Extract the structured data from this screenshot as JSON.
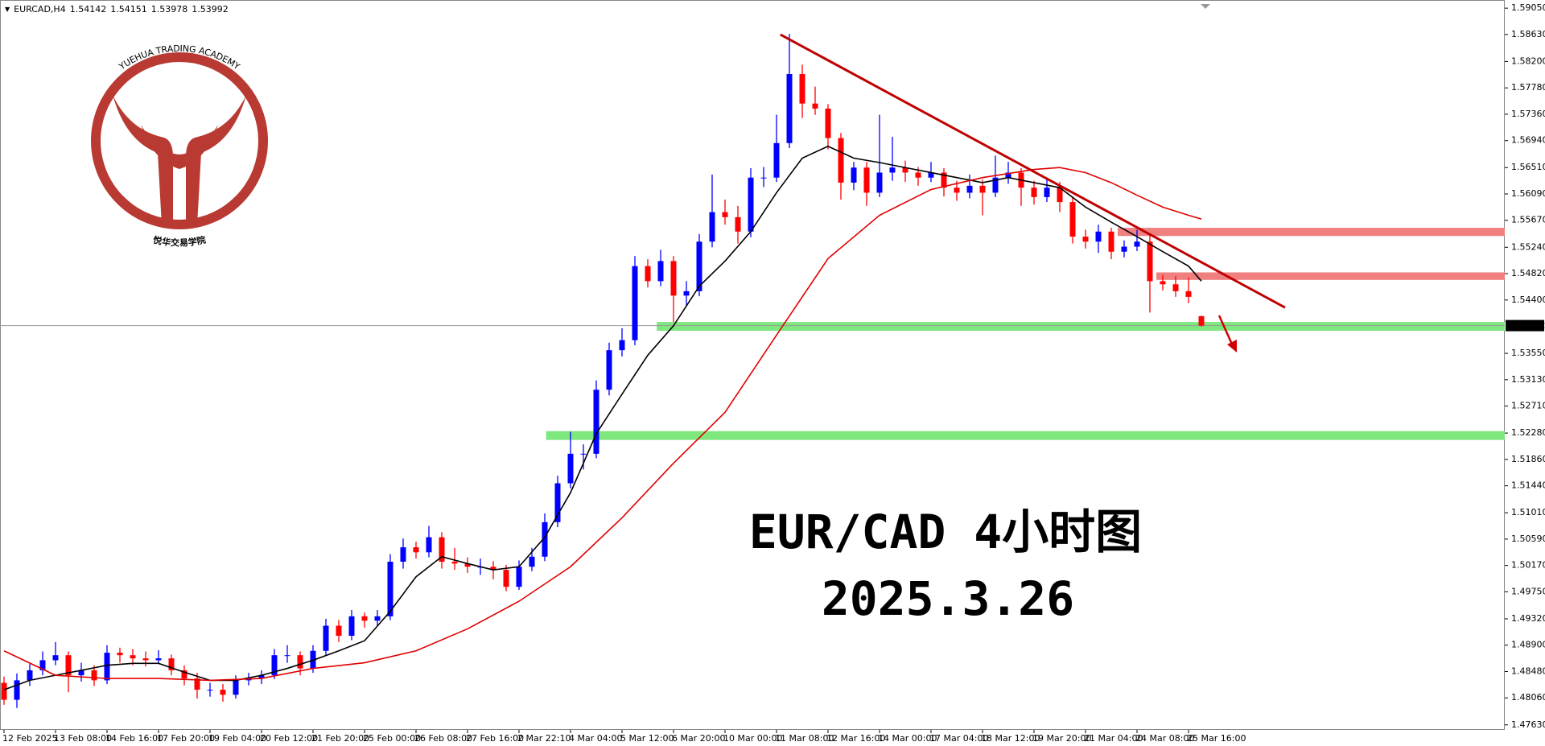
{
  "header": {
    "symbol": "EURCAD,H4",
    "quote": [
      1.54142,
      1.54151,
      1.53978,
      1.53992
    ]
  },
  "logo": {
    "arc_text": "YUEHUA TRADING ACADEMY",
    "cn_text": "悦华交易学院"
  },
  "chart_data": {
    "type": "candlestick",
    "up_color": "#0000ff",
    "down_color": "#ff0000",
    "categories": [
      "12 Feb 2025",
      null,
      null,
      null,
      "13 Feb 08:00",
      null,
      null,
      null,
      "14 Feb 16:00",
      null,
      null,
      null,
      "17 Feb 20:00",
      null,
      null,
      null,
      "19 Feb 04:00",
      null,
      null,
      null,
      "20 Feb 12:00",
      null,
      null,
      null,
      "21 Feb 20:00",
      null,
      null,
      null,
      "25 Feb 00:00",
      null,
      null,
      null,
      "26 Feb 08:00",
      null,
      null,
      null,
      "27 Feb 16:00",
      null,
      null,
      null,
      "2 Mar 22:10",
      null,
      null,
      null,
      "4 Mar 04:00",
      null,
      null,
      null,
      "5 Mar 12:00",
      null,
      null,
      null,
      "6 Mar 20:00",
      null,
      null,
      null,
      "10 Mar 00:00",
      null,
      null,
      null,
      "11 Mar 08:00",
      null,
      null,
      null,
      "12 Mar 16:00",
      null,
      null,
      null,
      "14 Mar 00:00",
      null,
      null,
      null,
      "17 Mar 04:00",
      null,
      null,
      null,
      "18 Mar 12:00",
      null,
      null,
      null,
      "19 Mar 20:00",
      null,
      null,
      null,
      "21 Mar 04:00",
      null,
      null,
      null,
      "24 Mar 08:00",
      null,
      null,
      null,
      "25 Mar 16:00",
      null
    ],
    "ohlc": [
      [
        1.483,
        1.484,
        1.4795,
        1.4803
      ],
      [
        1.4803,
        1.4845,
        1.479,
        1.4834
      ],
      [
        1.4834,
        1.486,
        1.4825,
        1.485
      ],
      [
        1.485,
        1.488,
        1.4842,
        1.4866
      ],
      [
        1.4866,
        1.4895,
        1.4858,
        1.4874
      ],
      [
        1.4874,
        1.488,
        1.4815,
        1.4842
      ],
      [
        1.4842,
        1.4862,
        1.4832,
        1.485
      ],
      [
        1.485,
        1.4858,
        1.4825,
        1.4834
      ],
      [
        1.4834,
        1.489,
        1.4828,
        1.4878
      ],
      [
        1.4878,
        1.4886,
        1.4862,
        1.4874
      ],
      [
        1.4874,
        1.4884,
        1.4858,
        1.4869
      ],
      [
        1.4869,
        1.488,
        1.4856,
        1.4866
      ],
      [
        1.4866,
        1.4882,
        1.486,
        1.4869
      ],
      [
        1.4869,
        1.4875,
        1.4842,
        1.485
      ],
      [
        1.485,
        1.4858,
        1.4826,
        1.4837
      ],
      [
        1.4837,
        1.4846,
        1.4805,
        1.4819
      ],
      [
        1.4819,
        1.483,
        1.4808,
        1.4819
      ],
      [
        1.4819,
        1.4828,
        1.48,
        1.4811
      ],
      [
        1.4811,
        1.4842,
        1.4805,
        1.4834
      ],
      [
        1.4834,
        1.4846,
        1.4826,
        1.4837
      ],
      [
        1.4837,
        1.485,
        1.4828,
        1.4842
      ],
      [
        1.4842,
        1.4884,
        1.4836,
        1.4874
      ],
      [
        1.4874,
        1.489,
        1.4862,
        1.4874
      ],
      [
        1.4874,
        1.488,
        1.4842,
        1.4853
      ],
      [
        1.4853,
        1.489,
        1.4846,
        1.4881
      ],
      [
        1.4881,
        1.4932,
        1.4874,
        1.4921
      ],
      [
        1.4921,
        1.493,
        1.4895,
        1.4905
      ],
      [
        1.4905,
        1.4946,
        1.4898,
        1.4936
      ],
      [
        1.4936,
        1.4942,
        1.4918,
        1.4929
      ],
      [
        1.4929,
        1.4946,
        1.492,
        1.4936
      ],
      [
        1.4936,
        1.5035,
        1.493,
        1.5023
      ],
      [
        1.5023,
        1.506,
        1.5012,
        1.5046
      ],
      [
        1.5046,
        1.5055,
        1.5028,
        1.5038
      ],
      [
        1.5038,
        1.508,
        1.503,
        1.5062
      ],
      [
        1.5062,
        1.507,
        1.5012,
        1.5023
      ],
      [
        1.5023,
        1.5045,
        1.501,
        1.502
      ],
      [
        1.502,
        1.503,
        1.5005,
        1.5015
      ],
      [
        1.5015,
        1.5028,
        1.5002,
        1.5015
      ],
      [
        1.5015,
        1.5024,
        1.4995,
        1.501
      ],
      [
        1.501,
        1.5018,
        1.4976,
        1.4983
      ],
      [
        1.4983,
        1.5025,
        1.4978,
        1.5015
      ],
      [
        1.5015,
        1.5045,
        1.5008,
        1.5031
      ],
      [
        1.5031,
        1.51,
        1.5024,
        1.5086
      ],
      [
        1.5086,
        1.516,
        1.5078,
        1.5148
      ],
      [
        1.5148,
        1.523,
        1.514,
        1.5195
      ],
      [
        1.5195,
        1.521,
        1.517,
        1.5195
      ],
      [
        1.5195,
        1.5312,
        1.5188,
        1.5297
      ],
      [
        1.5297,
        1.5372,
        1.5288,
        1.536
      ],
      [
        1.536,
        1.5395,
        1.535,
        1.5376
      ],
      [
        1.5376,
        1.551,
        1.5368,
        1.5494
      ],
      [
        1.5494,
        1.5505,
        1.546,
        1.547
      ],
      [
        1.547,
        1.552,
        1.5462,
        1.5502
      ],
      [
        1.5502,
        1.551,
        1.5405,
        1.5447
      ],
      [
        1.5447,
        1.547,
        1.543,
        1.5454
      ],
      [
        1.5454,
        1.5545,
        1.5446,
        1.5533
      ],
      [
        1.5533,
        1.564,
        1.5524,
        1.558
      ],
      [
        1.558,
        1.56,
        1.556,
        1.5572
      ],
      [
        1.5572,
        1.559,
        1.553,
        1.5549
      ],
      [
        1.5549,
        1.565,
        1.554,
        1.5635
      ],
      [
        1.5635,
        1.5652,
        1.562,
        1.5635
      ],
      [
        1.5635,
        1.5735,
        1.5628,
        1.569
      ],
      [
        1.569,
        1.5864,
        1.5682,
        1.58
      ],
      [
        1.58,
        1.5815,
        1.573,
        1.5753
      ],
      [
        1.5753,
        1.578,
        1.5735,
        1.5745
      ],
      [
        1.5745,
        1.5752,
        1.568,
        1.5698
      ],
      [
        1.5698,
        1.5706,
        1.56,
        1.5627
      ],
      [
        1.5627,
        1.566,
        1.5615,
        1.5651
      ],
      [
        1.5651,
        1.566,
        1.559,
        1.5611
      ],
      [
        1.5611,
        1.5735,
        1.5604,
        1.5643
      ],
      [
        1.5643,
        1.57,
        1.563,
        1.5651
      ],
      [
        1.5651,
        1.5662,
        1.5628,
        1.5643
      ],
      [
        1.5643,
        1.5652,
        1.5622,
        1.5635
      ],
      [
        1.5635,
        1.566,
        1.5628,
        1.5643
      ],
      [
        1.5643,
        1.565,
        1.5605,
        1.5619
      ],
      [
        1.5619,
        1.563,
        1.5598,
        1.5611
      ],
      [
        1.5611,
        1.564,
        1.5602,
        1.5622
      ],
      [
        1.5622,
        1.5632,
        1.5575,
        1.5611
      ],
      [
        1.5611,
        1.567,
        1.5604,
        1.5635
      ],
      [
        1.5635,
        1.566,
        1.5625,
        1.5643
      ],
      [
        1.5643,
        1.565,
        1.559,
        1.5619
      ],
      [
        1.5619,
        1.563,
        1.5592,
        1.5604
      ],
      [
        1.5604,
        1.5635,
        1.5596,
        1.5619
      ],
      [
        1.5619,
        1.5628,
        1.558,
        1.5596
      ],
      [
        1.5596,
        1.5605,
        1.553,
        1.5541
      ],
      [
        1.5541,
        1.5552,
        1.5522,
        1.5533
      ],
      [
        1.5533,
        1.556,
        1.5515,
        1.5549
      ],
      [
        1.5549,
        1.5555,
        1.5505,
        1.5517
      ],
      [
        1.5517,
        1.5535,
        1.5508,
        1.5525
      ],
      [
        1.5525,
        1.5552,
        1.5518,
        1.5533
      ],
      [
        1.5533,
        1.5545,
        1.542,
        1.547
      ],
      [
        1.547,
        1.548,
        1.5455,
        1.5465
      ],
      [
        1.5465,
        1.5478,
        1.5445,
        1.5454
      ],
      [
        1.5454,
        1.5476,
        1.5435,
        1.5445
      ],
      [
        1.54142,
        1.54151,
        1.53978,
        1.53992
      ]
    ],
    "lines": [
      {
        "color": "#000000",
        "x": [
          0,
          2,
          4,
          6,
          8,
          10,
          12,
          14,
          16,
          18,
          20,
          22,
          24,
          26,
          28,
          30,
          32,
          34,
          36,
          38,
          40,
          42,
          44,
          46,
          48,
          50,
          52,
          54,
          56,
          58,
          60,
          62,
          64,
          66,
          68,
          70,
          72,
          74,
          76,
          78,
          80,
          82,
          84,
          86,
          88,
          90,
          92,
          93
        ],
        "values": [
          1.4819,
          1.4834,
          1.4842,
          1.485,
          1.4858,
          1.4861,
          1.4861,
          1.4847,
          1.4834,
          1.4834,
          1.4842,
          1.4853,
          1.4866,
          1.4881,
          1.4897,
          1.4944,
          1.4999,
          1.5031,
          1.502,
          1.501,
          1.5015,
          1.5062,
          1.5133,
          1.5227,
          1.529,
          1.5352,
          1.5399,
          1.5462,
          1.5502,
          1.5549,
          1.5611,
          1.5666,
          1.5685,
          1.5666,
          1.5659,
          1.5651,
          1.5643,
          1.5635,
          1.5627,
          1.5635,
          1.5627,
          1.5619,
          1.5588,
          1.5564,
          1.5541,
          1.5517,
          1.5494,
          1.547
        ]
      },
      {
        "color": "#e00000",
        "x": [
          0,
          4,
          8,
          12,
          16,
          20,
          24,
          28,
          32,
          36,
          40,
          44,
          48,
          52,
          56,
          60,
          64,
          68,
          72,
          76,
          80,
          82,
          84,
          86,
          88,
          90,
          92,
          93
        ],
        "values": [
          1.4881,
          1.4842,
          1.4837,
          1.4837,
          1.4834,
          1.4837,
          1.4853,
          1.4862,
          1.4881,
          1.4916,
          1.496,
          1.5015,
          1.5093,
          1.518,
          1.5261,
          1.5384,
          1.5506,
          1.5575,
          1.5616,
          1.5635,
          1.5648,
          1.5651,
          1.5643,
          1.5627,
          1.5607,
          1.5588,
          1.5575,
          1.5569
        ]
      }
    ],
    "zones": [
      {
        "from": 50.7,
        "low": 1.5391,
        "high": 1.5405,
        "color": "#7ee87e"
      },
      {
        "from": 42.1,
        "low": 1.5217,
        "high": 1.5231,
        "color": "#7ee87e"
      },
      {
        "from": 86.5,
        "low": 1.5542,
        "high": 1.5555,
        "color": "#f08080"
      },
      {
        "from": 89.5,
        "low": 1.5472,
        "high": 1.5484,
        "color": "#f08080"
      }
    ],
    "trendline": {
      "x": [
        60.3,
        99.5
      ],
      "values": [
        1.5863,
        1.5428
      ],
      "color": "#c00000"
    },
    "current_price": 1.53992,
    "ylim": [
      1.4755,
      1.5918
    ],
    "yticks": [
      {
        "value": 1.5905,
        "label": "1.59050"
      },
      {
        "value": 1.5863,
        "label": "1.58630"
      },
      {
        "value": 1.582,
        "label": "1.58200"
      },
      {
        "value": 1.5778,
        "label": "1.57780"
      },
      {
        "value": 1.5736,
        "label": "1.57360"
      },
      {
        "value": 1.5694,
        "label": "1.56940"
      },
      {
        "value": 1.5651,
        "label": "1.56510"
      },
      {
        "value": 1.5609,
        "label": "1.56090"
      },
      {
        "value": 1.5567,
        "label": "1.55670"
      },
      {
        "value": 1.5524,
        "label": "1.55240"
      },
      {
        "value": 1.5482,
        "label": "1.54820"
      },
      {
        "value": 1.544,
        "label": "1.54400"
      },
      {
        "value": 1.5355,
        "label": "1.53550"
      },
      {
        "value": 1.5313,
        "label": "1.53130"
      },
      {
        "value": 1.5271,
        "label": "1.52710"
      },
      {
        "value": 1.5228,
        "label": "1.52280"
      },
      {
        "value": 1.5186,
        "label": "1.51860"
      },
      {
        "value": 1.5144,
        "label": "1.51440"
      },
      {
        "value": 1.5101,
        "label": "1.51010"
      },
      {
        "value": 1.5059,
        "label": "1.50590"
      },
      {
        "value": 1.5017,
        "label": "1.50170"
      },
      {
        "value": 1.4975,
        "label": "1.49750"
      },
      {
        "value": 1.4932,
        "label": "1.49320"
      },
      {
        "value": 1.489,
        "label": "1.48900"
      },
      {
        "value": 1.4848,
        "label": "1.48480"
      },
      {
        "value": 1.4806,
        "label": "1.48060"
      },
      {
        "value": 1.4763,
        "label": "1.47630"
      }
    ],
    "annotations": [
      "EUR/CAD 4小时图",
      "2025.3.26"
    ],
    "annotation_color": "#a020f0"
  }
}
